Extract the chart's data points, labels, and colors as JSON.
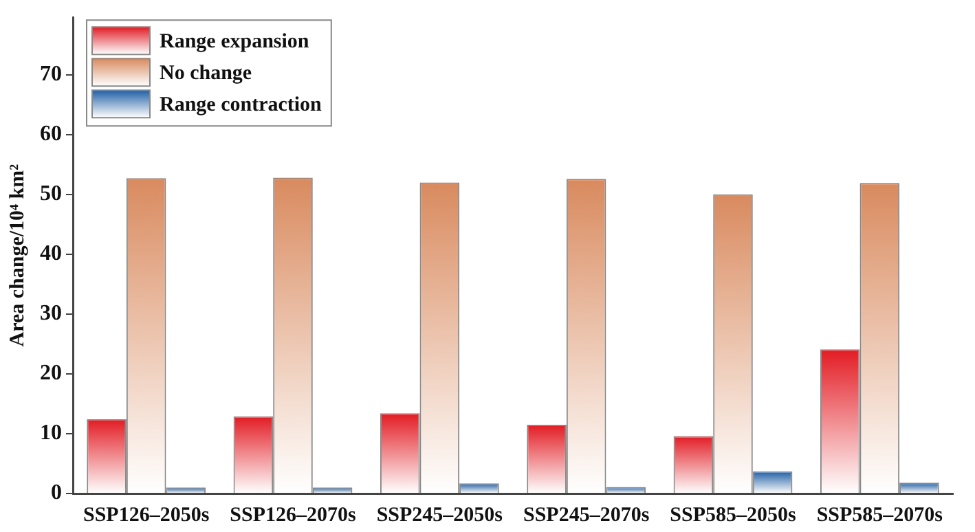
{
  "chart_data": {
    "type": "bar",
    "ylabel": "Area change/10⁴ km²",
    "categories": [
      "SSP126–2050s",
      "SSP126–2070s",
      "SSP245–2050s",
      "SSP245–2070s",
      "SSP585–2050s",
      "SSP585–2070s"
    ],
    "series": [
      {
        "name": "Range expansion",
        "color": "#e31b23",
        "values": [
          12.4,
          12.9,
          13.4,
          11.5,
          9.6,
          24.1
        ]
      },
      {
        "name": "No change",
        "color": "#d98a5e",
        "values": [
          52.7,
          52.8,
          52.0,
          52.6,
          50.0,
          51.9
        ]
      },
      {
        "name": "Range contraction",
        "color": "#1f5fa8",
        "values": [
          1.0,
          1.0,
          1.7,
          1.1,
          3.7,
          1.8
        ]
      }
    ],
    "ylim": [
      0,
      79.6
    ],
    "yticks": [
      0,
      10,
      20,
      30,
      40,
      50,
      60,
      70
    ],
    "grid": false,
    "legend": "top left"
  }
}
